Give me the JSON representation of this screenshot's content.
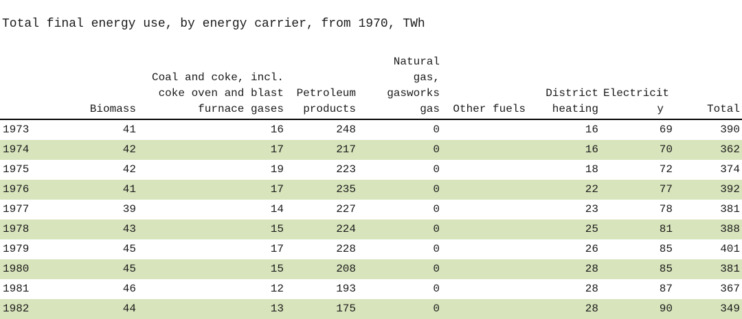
{
  "title": "Total final energy use, by energy carrier, from 1970, TWh",
  "colors": {
    "row_stripe": "#d8e4bc",
    "header_rule": "#000000",
    "background": "#ffffff",
    "text": "#1a1a1a"
  },
  "table": {
    "columns": [
      {
        "key": "year",
        "label": ""
      },
      {
        "key": "biomass",
        "label": "Biomass"
      },
      {
        "key": "coal_and_coke",
        "label": "Coal and coke, incl.\ncoke oven and blast\nfurnace gases"
      },
      {
        "key": "petroleum_products",
        "label": "Petroleum\nproducts"
      },
      {
        "key": "natural_gas",
        "label": "Natural gas,\ngasworks gas"
      },
      {
        "key": "other_fuels",
        "label": "Other fuels"
      },
      {
        "key": "district_heating",
        "label": "District\nheating"
      },
      {
        "key": "electricity",
        "label": "Electricit\ny"
      },
      {
        "key": "total",
        "label": "Total"
      }
    ],
    "rows": [
      {
        "year": "1973",
        "biomass": "41",
        "coal_and_coke": "16",
        "petroleum_products": "248",
        "natural_gas": "0",
        "other_fuels": "",
        "district_heating": "16",
        "electricity": "69",
        "total": "390"
      },
      {
        "year": "1974",
        "biomass": "42",
        "coal_and_coke": "17",
        "petroleum_products": "217",
        "natural_gas": "0",
        "other_fuels": "",
        "district_heating": "16",
        "electricity": "70",
        "total": "362"
      },
      {
        "year": "1975",
        "biomass": "42",
        "coal_and_coke": "19",
        "petroleum_products": "223",
        "natural_gas": "0",
        "other_fuels": "",
        "district_heating": "18",
        "electricity": "72",
        "total": "374"
      },
      {
        "year": "1976",
        "biomass": "41",
        "coal_and_coke": "17",
        "petroleum_products": "235",
        "natural_gas": "0",
        "other_fuels": "",
        "district_heating": "22",
        "electricity": "77",
        "total": "392"
      },
      {
        "year": "1977",
        "biomass": "39",
        "coal_and_coke": "14",
        "petroleum_products": "227",
        "natural_gas": "0",
        "other_fuels": "",
        "district_heating": "23",
        "electricity": "78",
        "total": "381"
      },
      {
        "year": "1978",
        "biomass": "43",
        "coal_and_coke": "15",
        "petroleum_products": "224",
        "natural_gas": "0",
        "other_fuels": "",
        "district_heating": "25",
        "electricity": "81",
        "total": "388"
      },
      {
        "year": "1979",
        "biomass": "45",
        "coal_and_coke": "17",
        "petroleum_products": "228",
        "natural_gas": "0",
        "other_fuels": "",
        "district_heating": "26",
        "electricity": "85",
        "total": "401"
      },
      {
        "year": "1980",
        "biomass": "45",
        "coal_and_coke": "15",
        "petroleum_products": "208",
        "natural_gas": "0",
        "other_fuels": "",
        "district_heating": "28",
        "electricity": "85",
        "total": "381"
      },
      {
        "year": "1981",
        "biomass": "46",
        "coal_and_coke": "12",
        "petroleum_products": "193",
        "natural_gas": "0",
        "other_fuels": "",
        "district_heating": "28",
        "electricity": "87",
        "total": "367"
      },
      {
        "year": "1982",
        "biomass": "44",
        "coal_and_coke": "13",
        "petroleum_products": "175",
        "natural_gas": "0",
        "other_fuels": "",
        "district_heating": "28",
        "electricity": "90",
        "total": "349"
      }
    ]
  },
  "chart_data": {
    "type": "table",
    "title": "Total final energy use, by energy carrier, from 1970, TWh",
    "unit": "TWh",
    "categories": [
      "1973",
      "1974",
      "1975",
      "1976",
      "1977",
      "1978",
      "1979",
      "1980",
      "1981",
      "1982"
    ],
    "series": [
      {
        "name": "Biomass",
        "values": [
          41,
          42,
          42,
          41,
          39,
          43,
          45,
          45,
          46,
          44
        ]
      },
      {
        "name": "Coal and coke, incl. coke oven and blast furnace gases",
        "values": [
          16,
          17,
          19,
          17,
          14,
          15,
          17,
          15,
          12,
          13
        ]
      },
      {
        "name": "Petroleum products",
        "values": [
          248,
          217,
          223,
          235,
          227,
          224,
          228,
          208,
          193,
          175
        ]
      },
      {
        "name": "Natural gas, gasworks gas",
        "values": [
          0,
          0,
          0,
          0,
          0,
          0,
          0,
          0,
          0,
          0
        ]
      },
      {
        "name": "Other fuels",
        "values": [
          null,
          null,
          null,
          null,
          null,
          null,
          null,
          null,
          null,
          null
        ]
      },
      {
        "name": "District heating",
        "values": [
          16,
          16,
          18,
          22,
          23,
          25,
          26,
          28,
          28,
          28
        ]
      },
      {
        "name": "Electricity",
        "values": [
          69,
          70,
          72,
          77,
          78,
          81,
          85,
          85,
          87,
          90
        ]
      },
      {
        "name": "Total",
        "values": [
          390,
          362,
          374,
          392,
          381,
          388,
          401,
          381,
          367,
          349
        ]
      }
    ],
    "layout": {
      "striped_rows": true,
      "stripe_color": "#d8e4bc",
      "header_rule": "2px solid black"
    }
  }
}
